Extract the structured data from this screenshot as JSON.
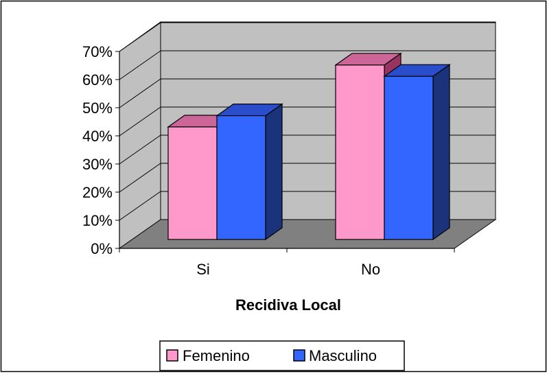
{
  "chart_data": {
    "type": "bar",
    "variant": "3d-clustered-column",
    "categories": [
      "Si",
      "No"
    ],
    "series": [
      {
        "name": "Femenino",
        "values": [
          0.4,
          0.62
        ]
      },
      {
        "name": "Masculino",
        "values": [
          0.44,
          0.58
        ]
      }
    ],
    "xlabel": "Recidiva Local",
    "ylabel": "",
    "ylim": [
      0,
      0.7
    ],
    "y_ticks": [
      "0%",
      "10%",
      "20%",
      "30%",
      "40%",
      "50%",
      "60%",
      "70%"
    ],
    "grid": true,
    "legend_position": "bottom",
    "colors": {
      "series_front": [
        "#ff99cc",
        "#3366ff"
      ],
      "series_top": [
        "#cc6699",
        "#2a4dcc"
      ],
      "series_side": [
        "#99335f",
        "#1a337a"
      ],
      "wall": "#c0c0c0",
      "floor": "#808080",
      "gridline": "#000000"
    }
  }
}
